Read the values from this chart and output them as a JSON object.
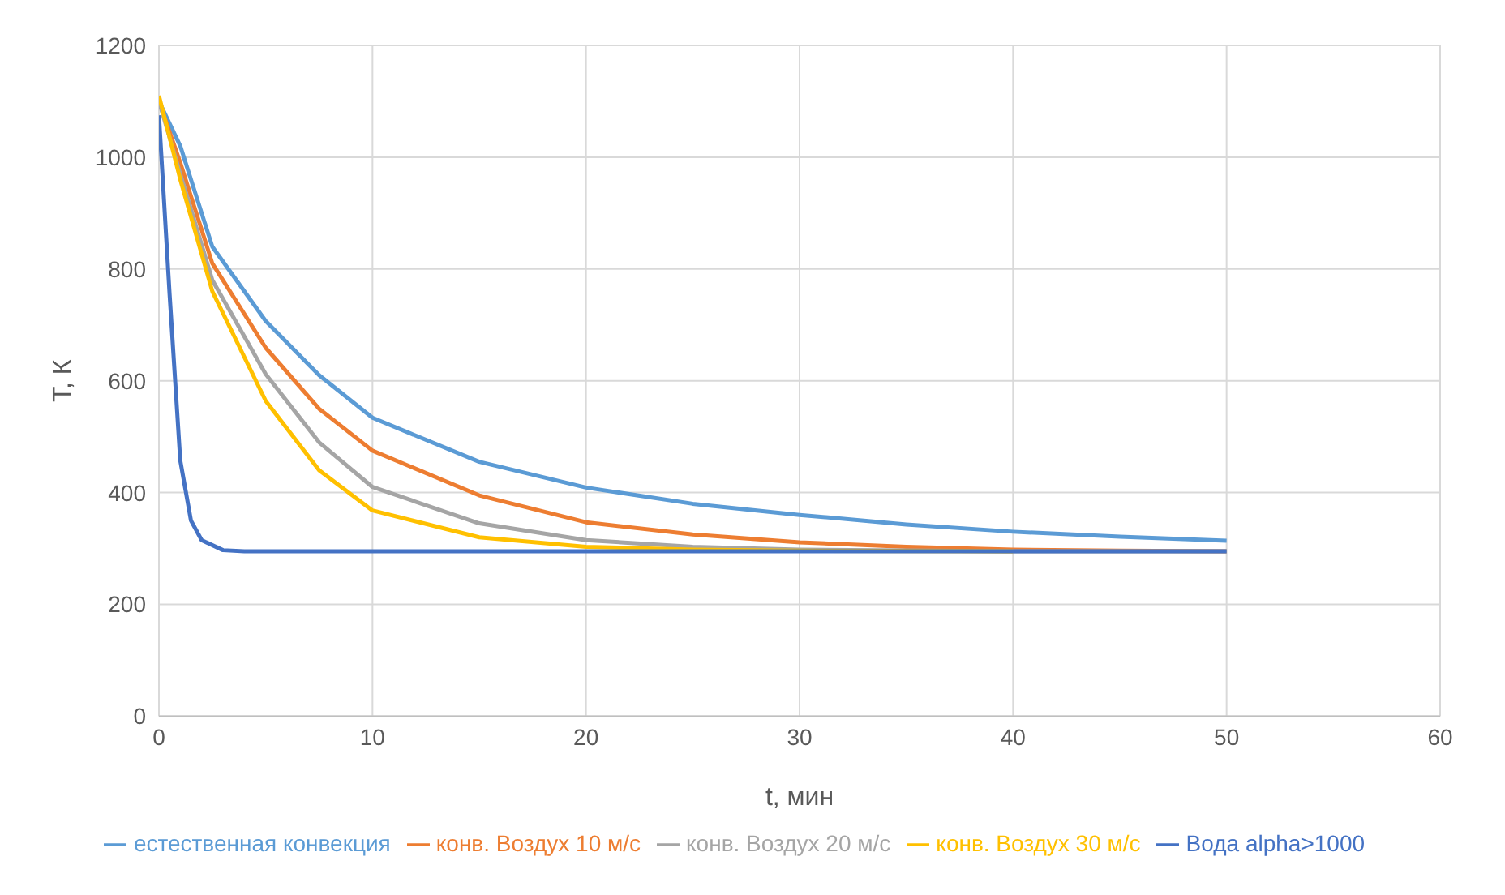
{
  "chart_data": {
    "type": "line",
    "xlabel": "t, мин",
    "ylabel": "T, К",
    "xlim": [
      0,
      60
    ],
    "xticks": [
      0,
      10,
      20,
      30,
      40,
      50,
      60
    ],
    "ylim": [
      0,
      1200
    ],
    "yticks": [
      0,
      200,
      400,
      600,
      800,
      1000,
      1200
    ],
    "grid": true,
    "legend": "bottom",
    "marker": "none",
    "line_style": "solid",
    "series": [
      {
        "name": "естественная конвекция",
        "color": "#5b9bd5",
        "x": [
          0,
          1,
          2.5,
          5,
          7.5,
          10,
          15,
          20,
          25,
          30,
          35,
          40,
          45,
          50
        ],
        "values": [
          1100,
          1020,
          840,
          707,
          610,
          534,
          455,
          409,
          380,
          360,
          343,
          330,
          321,
          314
        ]
      },
      {
        "name": "конв. Воздух 10 м/с",
        "color": "#ed7d31",
        "x": [
          0,
          1,
          2.5,
          5,
          7.5,
          10,
          15,
          20,
          25,
          30,
          35,
          40,
          45,
          50
        ],
        "values": [
          1100,
          990,
          810,
          659,
          550,
          475,
          395,
          347,
          325,
          311,
          303,
          298,
          296,
          295
        ]
      },
      {
        "name": "конв. Воздух 20 м/с",
        "color": "#a5a5a5",
        "x": [
          0,
          1,
          2.5,
          5,
          7.5,
          10,
          15,
          20,
          25,
          30,
          40,
          50
        ],
        "values": [
          1100,
          970,
          780,
          612,
          490,
          410,
          345,
          315,
          303,
          298,
          295,
          295
        ]
      },
      {
        "name": "конв. Воздух 30 м/с",
        "color": "#ffc000",
        "x": [
          0,
          1,
          2.5,
          5,
          7.5,
          10,
          15,
          20,
          25,
          30,
          40
        ],
        "values": [
          1110,
          960,
          760,
          564,
          440,
          368,
          320,
          303,
          298,
          296,
          295
        ]
      },
      {
        "name": "Вода alpha>1000",
        "color": "#4472c4",
        "x": [
          0,
          0.5,
          1,
          1.5,
          2,
          3,
          4,
          10,
          50
        ],
        "values": [
          1075,
          754,
          457,
          350,
          315,
          297,
          295,
          295,
          295
        ]
      }
    ]
  }
}
